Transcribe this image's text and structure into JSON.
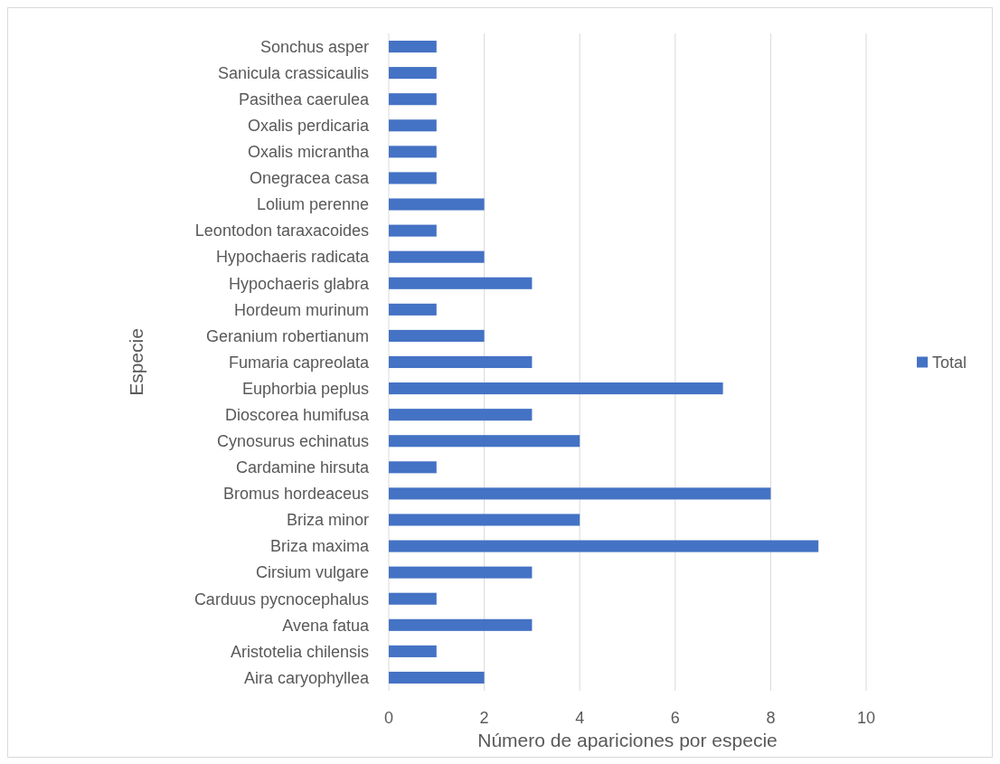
{
  "chart_data": {
    "type": "bar",
    "orientation": "horizontal",
    "xlabel": "Número de apariciones por especie",
    "ylabel": "Especie",
    "categories": [
      "Sonchus asper",
      "Sanicula crassicaulis",
      "Pasithea caerulea",
      "Oxalis perdicaria",
      "Oxalis micrantha",
      "Onegracea casa",
      "Lolium perenne",
      "Leontodon taraxacoides",
      "Hypochaeris radicata",
      "Hypochaeris glabra",
      "Hordeum murinum",
      "Geranium robertianum",
      "Fumaria capreolata",
      "Euphorbia peplus",
      "Dioscorea humifusa",
      "Cynosurus echinatus",
      "Cardamine hirsuta",
      "Bromus hordeaceus",
      "Briza minor",
      "Briza maxima",
      "Cirsium vulgare",
      "Carduus pycnocephalus",
      "Avena fatua",
      "Aristotelia chilensis",
      "Aira caryophyllea"
    ],
    "series": [
      {
        "name": "Total",
        "color": "#4472c4",
        "values": [
          1,
          1,
          1,
          1,
          1,
          1,
          2,
          1,
          2,
          3,
          1,
          2,
          3,
          7,
          3,
          4,
          1,
          8,
          4,
          9,
          3,
          1,
          3,
          1,
          2
        ]
      }
    ],
    "xlim": [
      0,
      10
    ],
    "xticks": [
      0,
      2,
      4,
      6,
      8,
      10
    ],
    "grid": "x",
    "legend": "right"
  }
}
